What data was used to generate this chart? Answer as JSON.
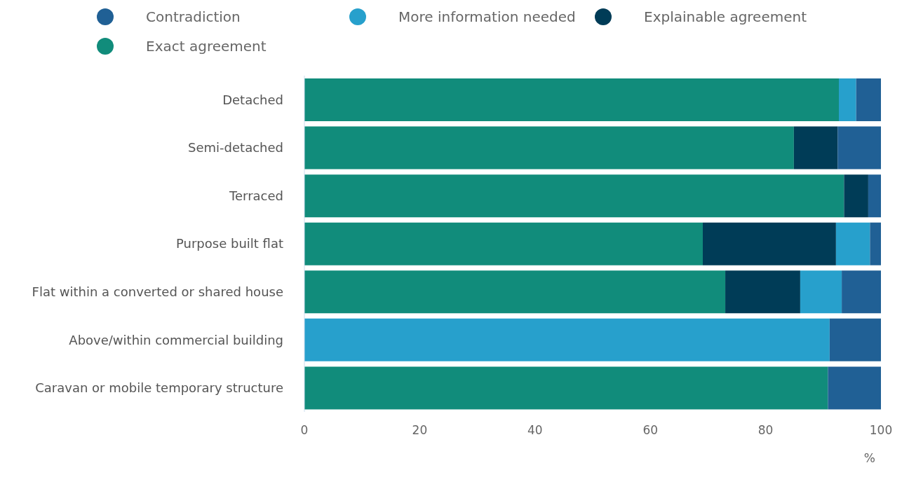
{
  "chart_data": {
    "type": "bar",
    "orientation": "horizontal",
    "stacked": true,
    "xlabel": "%",
    "categories": [
      "Detached",
      "Semi-detached",
      "Terraced",
      "Purpose built flat",
      "Flat within a converted or shared house",
      "Above/within commercial building",
      "Caravan or mobile temporary structure"
    ],
    "series": [
      {
        "name": "Exact agreement",
        "color": "#118c7b",
        "values": [
          92.7,
          84.9,
          93.6,
          69.1,
          73.0,
          0,
          90.8
        ]
      },
      {
        "name": "Explainable agreement",
        "color": "#003c57",
        "values": [
          0,
          7.6,
          4.2,
          23.1,
          13.0,
          0,
          0
        ]
      },
      {
        "name": "More information needed",
        "color": "#27a0cc",
        "values": [
          3.0,
          0,
          0,
          5.9,
          7.2,
          91.1,
          0
        ]
      },
      {
        "name": "Contradiction",
        "color": "#206095",
        "values": [
          4.3,
          7.5,
          2.2,
          1.9,
          6.8,
          8.9,
          9.2
        ]
      }
    ],
    "xlim": [
      0,
      100
    ],
    "xticks": [
      0,
      20,
      40,
      60,
      80,
      100
    ],
    "grid": false,
    "legend": "top left"
  }
}
